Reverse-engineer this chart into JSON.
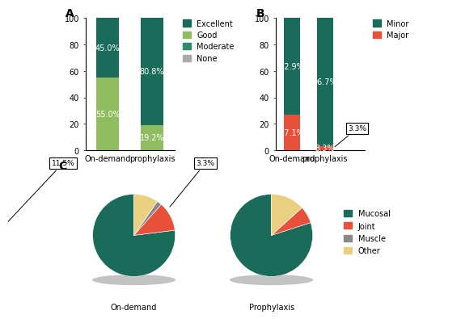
{
  "A": {
    "excellent": [
      45.0,
      80.8
    ],
    "good": [
      55.0,
      19.2
    ],
    "color_excellent": "#1a6b5a",
    "color_good": "#8fbc5e",
    "color_moderate": "#2e8b6e",
    "color_none": "#aaaaaa",
    "xlabel": "On-demand prophylaxis",
    "ylim": [
      0,
      100
    ],
    "legend_labels": [
      "Excellent",
      "Good",
      "Moderate",
      "None"
    ]
  },
  "B": {
    "minor": [
      72.9,
      96.7
    ],
    "major": [
      27.1,
      3.3
    ],
    "color_minor": "#1a6b5a",
    "color_major": "#e8503a",
    "xlabel": "On-demand prophylaxis",
    "ylim": [
      0,
      100
    ],
    "legend_labels": [
      "Minor",
      "Major"
    ]
  },
  "C": {
    "ondemand": {
      "values": [
        76.9,
        11.5,
        1.9,
        9.6
      ],
      "label": "On-demand",
      "annot": "11.5%"
    },
    "prophylaxis": {
      "values": [
        80.0,
        6.7,
        0.0,
        13.3
      ],
      "label": "Prophylaxis",
      "annot": "3.3%"
    },
    "colors": [
      "#1a6b5a",
      "#e8503a",
      "#888888",
      "#e8d080"
    ],
    "legend_labels": [
      "Mucosal",
      "Joint",
      "Muscle",
      "Other"
    ]
  },
  "panel_label_fontsize": 10,
  "tick_fontsize": 7,
  "legend_fontsize": 7,
  "bar_value_fontsize": 7,
  "annot_fontsize": 6.5,
  "background_color": "#ffffff"
}
